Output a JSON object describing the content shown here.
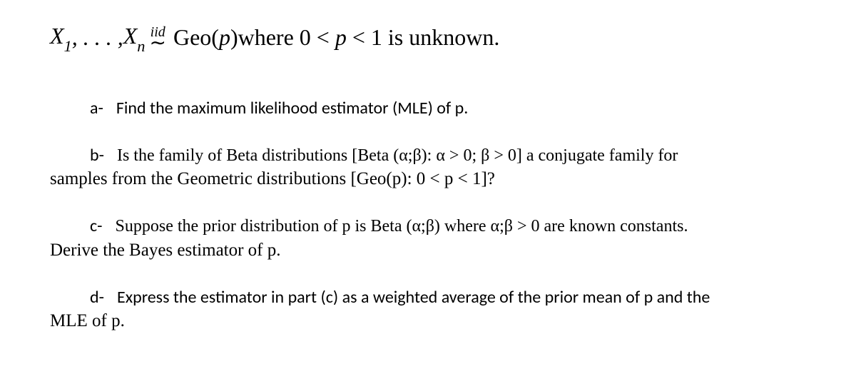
{
  "statement": {
    "X": "X",
    "sub1": "1",
    "dots": ", . . . , ",
    "subn": "n",
    "iid": "iid",
    "tilde": "∼",
    "geo": "Geo(",
    "p": "p",
    "closeParen": ")",
    "where": " where 0 < ",
    "p2": "p",
    "lt1": " < 1 is unknown."
  },
  "qa": {
    "label": "a-",
    "text": "Find the maximum likelihood estimator (MLE) of p."
  },
  "qb": {
    "label": "b-",
    "text1": "Is the family of Beta distributions [Beta (α;β): α   > 0;   β > 0] a conjugate family for",
    "text2": "samples from the Geometric distributions [Geo(p): 0 < p < 1]?"
  },
  "qc": {
    "label": "c-",
    "text1": "Suppose the prior distribution of p is Beta (α;β) where α;β   > 0 are known constants.",
    "text2": "Derive the Bayes estimator of p."
  },
  "qd": {
    "label": "d-",
    "text1": "Express the estimator in part (c) as a weighted average of the prior mean of p and the",
    "text2": "MLE of p."
  }
}
